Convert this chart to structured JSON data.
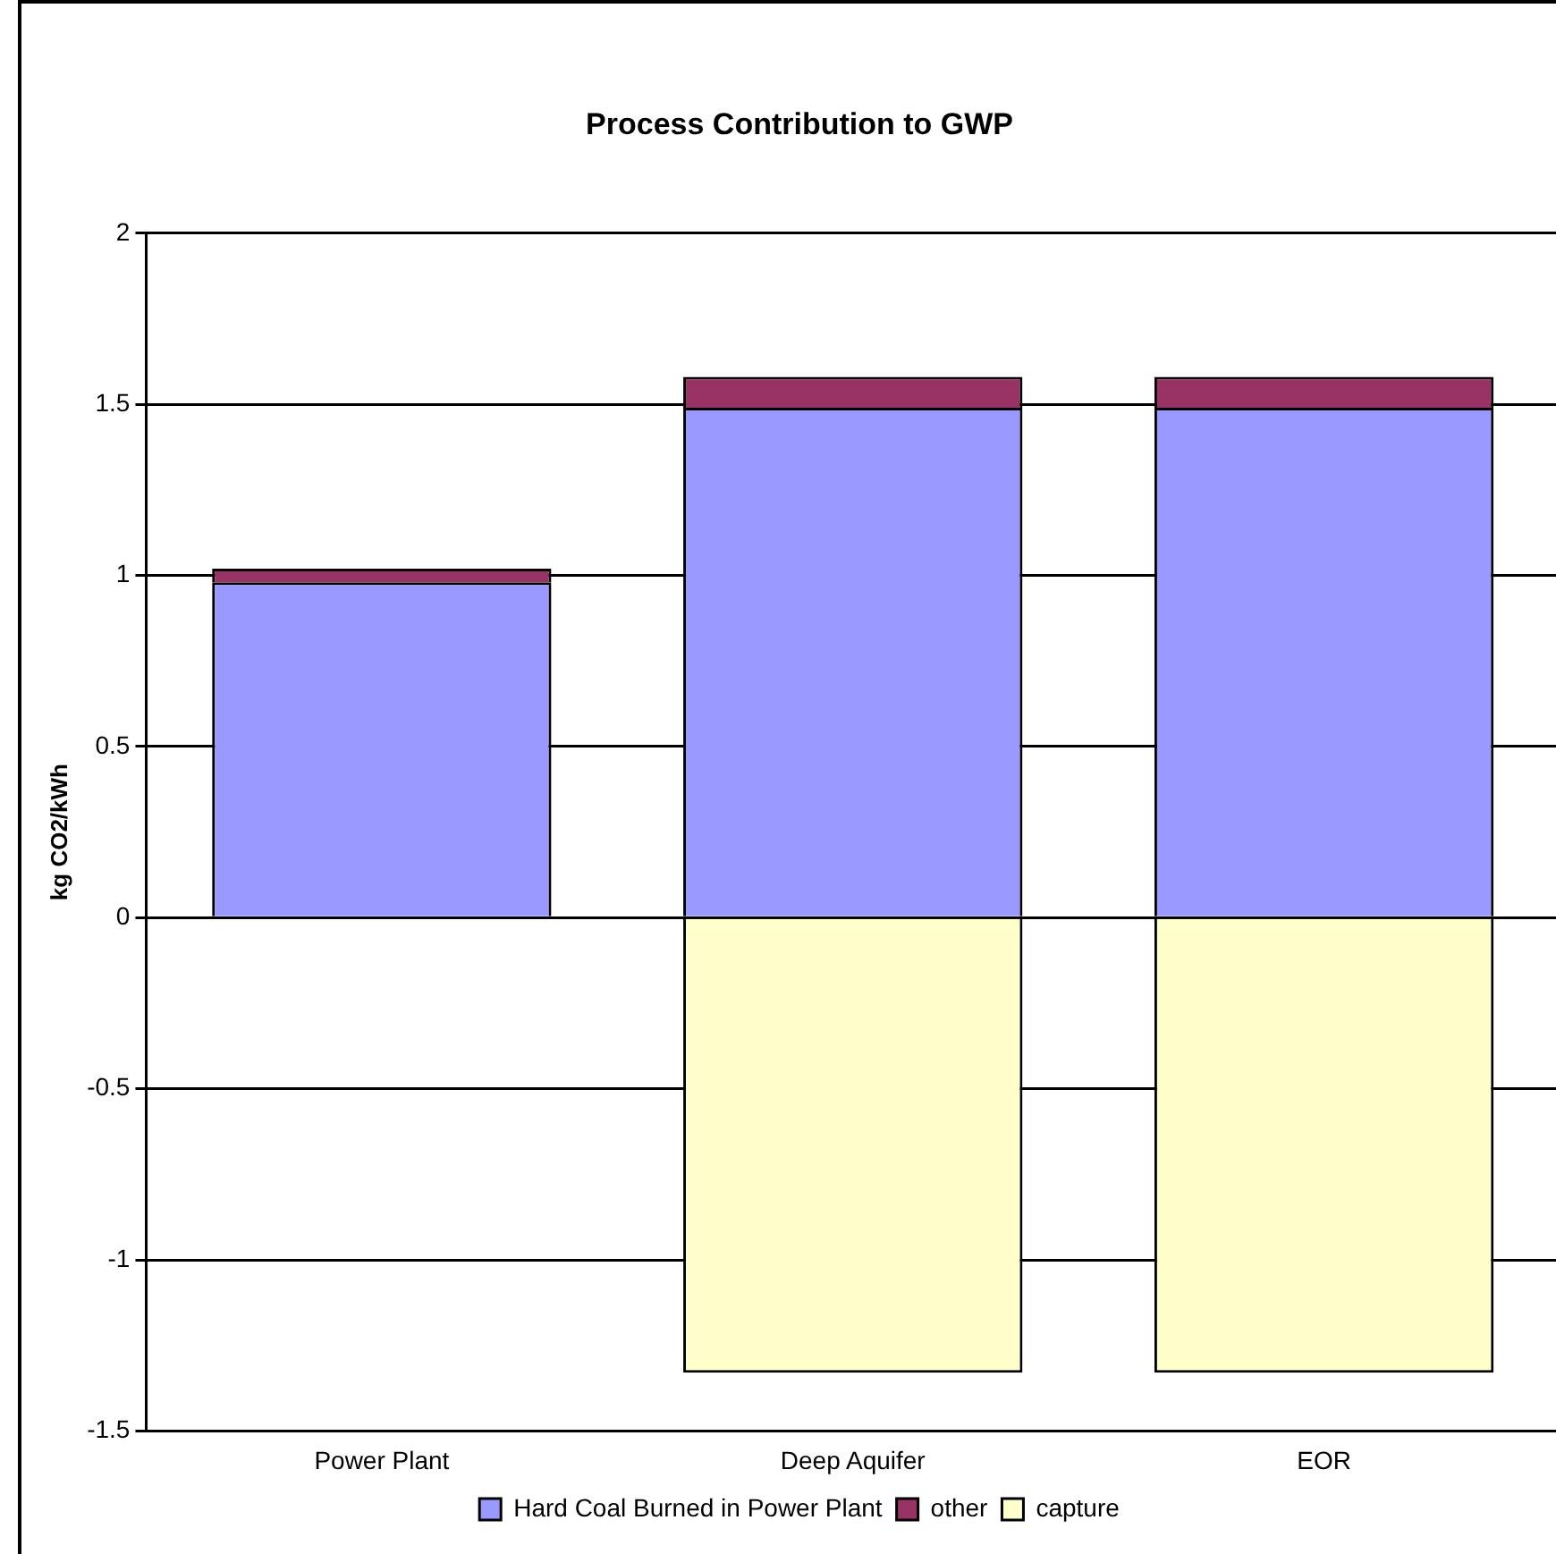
{
  "chart_data": {
    "type": "bar",
    "title": "Process Contribution to GWP",
    "ylabel": "kg CO2/kWh",
    "categories": [
      "Power Plant",
      "Deep Aquifer",
      "EOR"
    ],
    "series": [
      {
        "name": "Hard Coal Burned in Power Plant",
        "color": "#9999ff",
        "values": [
          0.98,
          1.49,
          1.49
        ]
      },
      {
        "name": "other",
        "color": "#993366",
        "values": [
          0.04,
          0.09,
          0.09
        ]
      },
      {
        "name": "capture",
        "color": "#ffffcc",
        "values": [
          null,
          -1.33,
          -1.33
        ]
      }
    ],
    "stacked": true,
    "ylim": [
      -1.5,
      2
    ],
    "yticks": [
      -1.5,
      -1,
      -0.5,
      0,
      0.5,
      1,
      1.5,
      2
    ],
    "grid": "y",
    "legend": "bottom"
  }
}
